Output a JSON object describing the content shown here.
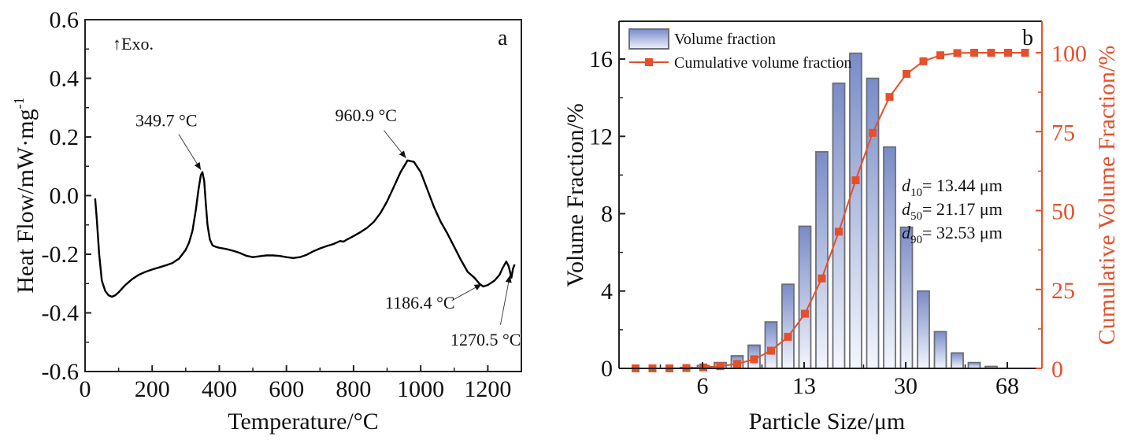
{
  "colors": {
    "axis": "#111111",
    "curve": "#000000",
    "bar_top": "#7a8cc8",
    "bar_bottom": "#f4f6fc",
    "bar_edge": "#6b6f78",
    "cumulative": "#e5502c"
  },
  "chart_data": [
    {
      "type": "line",
      "panel_label": "a",
      "title": "",
      "xlabel": "Temperature/°C",
      "ylabel": "Heat Flow/mW·mg",
      "ylabel_superscript": "-1",
      "xlim": [
        0,
        1300
      ],
      "ylim": [
        -0.6,
        0.6
      ],
      "xticks": [
        0,
        200,
        400,
        600,
        800,
        1000,
        1200
      ],
      "xtick_labels": [
        "0",
        "200",
        "400",
        "600",
        "800",
        "1000",
        "1200"
      ],
      "yticks": [
        -0.6,
        -0.4,
        -0.2,
        0.0,
        0.2,
        0.4,
        0.6
      ],
      "ytick_labels": [
        "-0.6",
        "-0.4",
        "-0.2",
        "0.0",
        "0.2",
        "0.4",
        "0.6"
      ],
      "direction_note": "↑Exo.",
      "series": [
        {
          "name": "DSC curve",
          "x": [
            30,
            35,
            42,
            50,
            60,
            70,
            80,
            90,
            100,
            120,
            140,
            160,
            180,
            200,
            220,
            240,
            260,
            280,
            300,
            310,
            320,
            330,
            338,
            345,
            349.7,
            355,
            360,
            365,
            372,
            380,
            390,
            400,
            420,
            440,
            460,
            480,
            500,
            520,
            540,
            560,
            580,
            600,
            620,
            640,
            660,
            680,
            700,
            720,
            740,
            760,
            770,
            780,
            800,
            820,
            840,
            860,
            880,
            900,
            920,
            940,
            960.9,
            980,
            1000,
            1020,
            1040,
            1060,
            1080,
            1100,
            1120,
            1140,
            1160,
            1175,
            1186.4,
            1200,
            1220,
            1235,
            1245,
            1255,
            1262,
            1270.5,
            1275,
            1280
          ],
          "y": [
            -0.01,
            -0.08,
            -0.2,
            -0.29,
            -0.325,
            -0.34,
            -0.345,
            -0.34,
            -0.33,
            -0.305,
            -0.285,
            -0.27,
            -0.26,
            -0.252,
            -0.245,
            -0.238,
            -0.23,
            -0.215,
            -0.185,
            -0.16,
            -0.12,
            -0.05,
            0.02,
            0.07,
            0.08,
            0.05,
            -0.03,
            -0.1,
            -0.15,
            -0.17,
            -0.175,
            -0.178,
            -0.182,
            -0.188,
            -0.195,
            -0.205,
            -0.21,
            -0.207,
            -0.204,
            -0.204,
            -0.206,
            -0.21,
            -0.213,
            -0.21,
            -0.202,
            -0.19,
            -0.18,
            -0.172,
            -0.165,
            -0.155,
            -0.157,
            -0.15,
            -0.138,
            -0.125,
            -0.11,
            -0.09,
            -0.06,
            -0.02,
            0.03,
            0.08,
            0.12,
            0.115,
            0.08,
            0.02,
            -0.04,
            -0.09,
            -0.13,
            -0.175,
            -0.22,
            -0.26,
            -0.28,
            -0.3,
            -0.31,
            -0.305,
            -0.29,
            -0.27,
            -0.245,
            -0.225,
            -0.24,
            -0.28,
            -0.25,
            -0.235
          ]
        }
      ],
      "annotations": [
        {
          "text": "349.7 °C",
          "x": 349.7,
          "y": 0.08
        },
        {
          "text": "960.9 °C",
          "x": 960.9,
          "y": 0.12
        },
        {
          "text": "1186.4 °C",
          "x": 1186.4,
          "y": -0.31
        },
        {
          "text": "1270.5 °C",
          "x": 1270.5,
          "y": -0.28
        }
      ]
    },
    {
      "type": "bar",
      "panel_label": "b",
      "title": "",
      "xlabel": "Particle Size/μm",
      "ylabel": "Volume Fraction/%",
      "ylabel_right": "Cumulative Volume Fraction/%",
      "ylim": [
        0,
        18
      ],
      "ylim_right": [
        0,
        110
      ],
      "xtick_labels": [
        "6",
        "13",
        "30",
        "68"
      ],
      "xtick_label_bin_positions": [
        4,
        10,
        16,
        22
      ],
      "yticks": [
        0,
        4,
        8,
        12,
        16
      ],
      "yticks_right": [
        0,
        25,
        50,
        75,
        100
      ],
      "legend": {
        "placement": "top-left",
        "entries": [
          "Volume fraction",
          "Cumulative volume fraction"
        ]
      },
      "bin_count": 24,
      "series": [
        {
          "name": "Volume fraction",
          "axis": "left",
          "kind": "bar",
          "values": [
            0,
            0,
            0,
            0.05,
            0.15,
            0.3,
            0.65,
            1.2,
            2.4,
            4.35,
            7.35,
            11.2,
            14.75,
            16.3,
            15.0,
            11.45,
            7.3,
            4.0,
            1.9,
            0.8,
            0.3,
            0.1,
            0,
            0
          ]
        },
        {
          "name": "Cumulative volume fraction",
          "axis": "right",
          "kind": "line-marker",
          "values": [
            0,
            0,
            0,
            0.1,
            0.3,
            0.7,
            1.4,
            2.9,
            5.6,
            10.0,
            17.3,
            28.5,
            43.3,
            59.6,
            74.6,
            86.0,
            93.3,
            97.3,
            99.2,
            99.9,
            100,
            100,
            100,
            100
          ]
        }
      ],
      "statistics": [
        {
          "symbol": "d",
          "subscript": "10",
          "text": "= 13.44 μm"
        },
        {
          "symbol": "d",
          "subscript": "50",
          "text": "= 21.17 μm"
        },
        {
          "symbol": "d",
          "subscript": "90",
          "text": "= 32.53 μm"
        }
      ]
    }
  ]
}
